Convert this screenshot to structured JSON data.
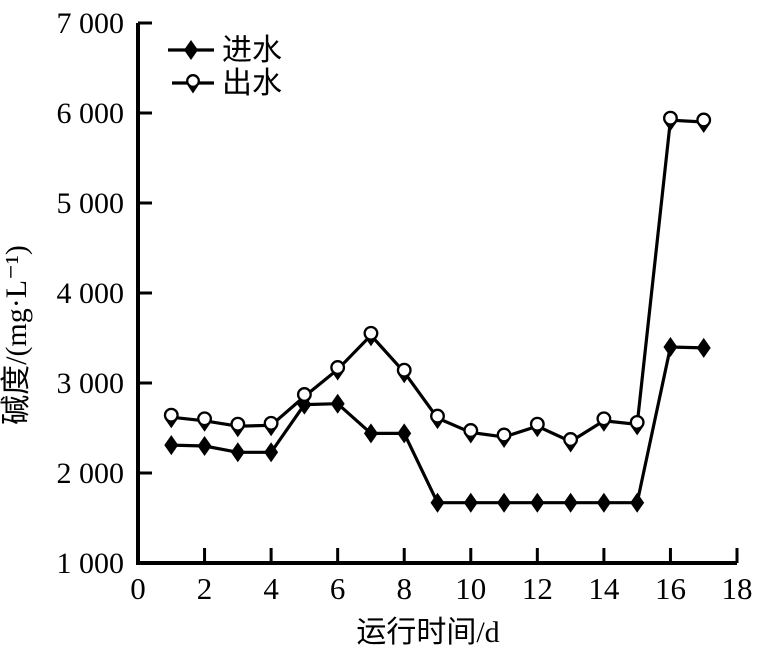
{
  "chart_data": {
    "type": "line",
    "title": "",
    "xlabel": "运行时间/d",
    "ylabel": "碱度/(mg·L⁻¹)",
    "xlim": [
      0,
      18
    ],
    "ylim": [
      1000,
      7000
    ],
    "x_ticks": [
      0,
      2,
      4,
      6,
      8,
      10,
      12,
      14,
      16,
      18
    ],
    "x_tick_labels": [
      "0",
      "2",
      "4",
      "6",
      "8",
      "10",
      "12",
      "14",
      "16",
      "18"
    ],
    "y_ticks": [
      1000,
      2000,
      3000,
      4000,
      5000,
      6000,
      7000
    ],
    "y_tick_labels": [
      "1 000",
      "2 000",
      "3 000",
      "4 000",
      "5 000",
      "6 000",
      "7 000"
    ],
    "x": [
      1,
      2,
      3,
      4,
      5,
      6,
      7,
      8,
      9,
      10,
      11,
      12,
      13,
      14,
      15,
      16,
      17
    ],
    "series": [
      {
        "name": "进水",
        "marker": "filled-diamond",
        "values": [
          2310,
          2300,
          2230,
          2230,
          2760,
          2770,
          2440,
          2440,
          1670,
          1670,
          1670,
          1670,
          1670,
          1670,
          1670,
          3400,
          3390
        ]
      },
      {
        "name": "出水",
        "marker": "open-circle",
        "values": [
          2620,
          2580,
          2520,
          2530,
          2850,
          3150,
          3530,
          3120,
          2610,
          2450,
          2400,
          2520,
          2350,
          2580,
          2540,
          5920,
          5900
        ]
      }
    ],
    "grid": false,
    "legend_position": "top-left-inside",
    "colors": {
      "line": "#000000",
      "background": "#ffffff",
      "marker_fill": "#000000",
      "circle_fill": "#ffffff"
    }
  }
}
